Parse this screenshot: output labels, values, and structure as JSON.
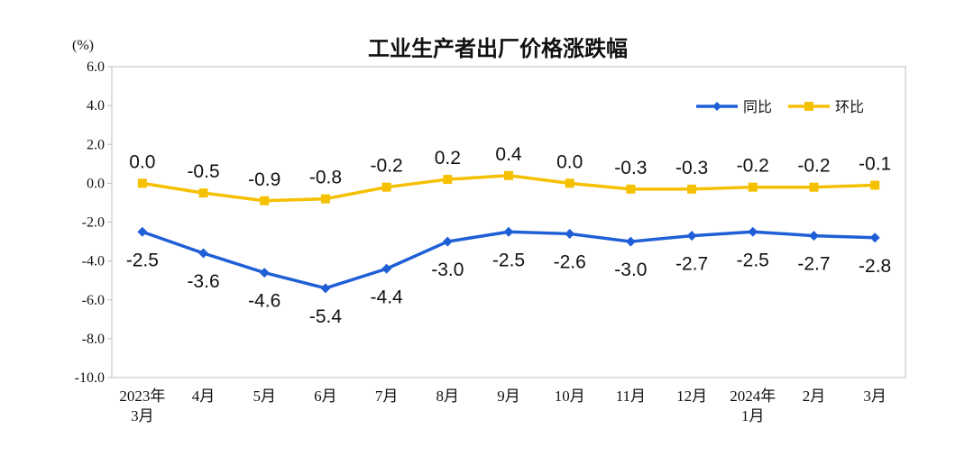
{
  "chart_data": {
    "type": "line",
    "title": "工业生产者出厂价格涨跌幅",
    "unit": "(%)",
    "ylim": [
      -10.0,
      6.0
    ],
    "yticks": [
      "6.0",
      "4.0",
      "2.0",
      "0.0",
      "-2.0",
      "-4.0",
      "-6.0",
      "-8.0",
      "-10.0"
    ],
    "categories": [
      [
        "2023年",
        "3月"
      ],
      [
        "4月"
      ],
      [
        "5月"
      ],
      [
        "6月"
      ],
      [
        "7月"
      ],
      [
        "8月"
      ],
      [
        "9月"
      ],
      [
        "10月"
      ],
      [
        "11月"
      ],
      [
        "12月"
      ],
      [
        "2024年",
        "1月"
      ],
      [
        "2月"
      ],
      [
        "3月"
      ]
    ],
    "series": [
      {
        "name": "同比",
        "color": "#1F5FD6",
        "marker": "diamond",
        "values": [
          -2.5,
          -3.6,
          -4.6,
          -5.4,
          -4.4,
          -3.0,
          -2.5,
          -2.6,
          -3.0,
          -2.7,
          -2.5,
          -2.7,
          -2.8
        ],
        "labels": [
          "-2.5",
          "-3.6",
          "-4.6",
          "-5.4",
          "-4.4",
          "-3.0",
          "-2.5",
          "-2.6",
          "-3.0",
          "-2.7",
          "-2.5",
          "-2.7",
          "-2.8"
        ]
      },
      {
        "name": "环比",
        "color": "#F5C000",
        "marker": "square",
        "values": [
          0.0,
          -0.5,
          -0.9,
          -0.8,
          -0.2,
          0.2,
          0.4,
          0.0,
          -0.3,
          -0.3,
          -0.2,
          -0.2,
          -0.1
        ],
        "labels": [
          "0.0",
          "-0.5",
          "-0.9",
          "-0.8",
          "-0.2",
          "0.2",
          "0.4",
          "0.0",
          "-0.3",
          "-0.3",
          "-0.2",
          "-0.2",
          "-0.1"
        ]
      }
    ],
    "legend": "top-right",
    "grid": false
  }
}
